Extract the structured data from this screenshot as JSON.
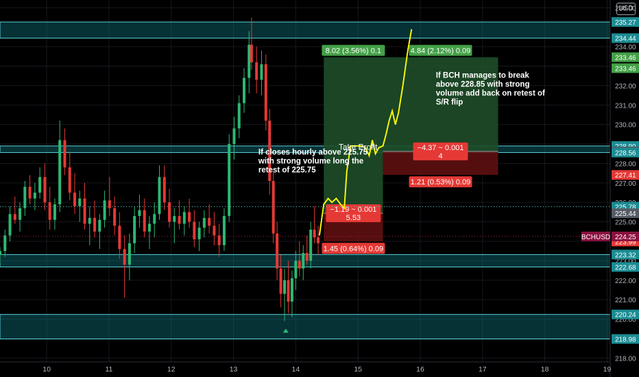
{
  "header": {
    "currency_badge": "USD"
  },
  "colors": {
    "background": "#000000",
    "zone_fill": "#0e6f78",
    "zone_border": "#5cd3dc",
    "up_candle": "#2eb872",
    "down_candle": "#e53935",
    "profit_zone": "#1e4d28",
    "stop_zone": "#5e1010",
    "projection": "#f5f50a",
    "label_green": "#43a047",
    "label_red": "#e53935",
    "symbol_badge": "#8b1140"
  },
  "chart_data": {
    "type": "candlestick",
    "symbol": "BCHUSD",
    "last_price": "224.25",
    "y_axis": {
      "ticks": [
        "236.00",
        "234.00",
        "233.00",
        "232.00",
        "231.00",
        "230.00",
        "229.00",
        "228.00",
        "227.00",
        "226.00",
        "225.00",
        "224.00",
        "223.00",
        "222.00",
        "221.00",
        "220.00",
        "219.00",
        "218.00"
      ],
      "range": [
        217.8,
        236.4
      ],
      "scale": "linear"
    },
    "x_axis": {
      "ticks": [
        "10",
        "11",
        "12",
        "13",
        "14",
        "15",
        "16",
        "17",
        "18",
        "19"
      ],
      "range": [
        9.25,
        19.05
      ]
    },
    "price_labels": [
      {
        "value": 235.27,
        "text": "235.27",
        "color": "#1b8c93"
      },
      {
        "value": 234.44,
        "text": "234.44",
        "color": "#1b8c93"
      },
      {
        "value": 233.46,
        "text": "233.46",
        "color": "#43a047"
      },
      {
        "value": 233.46,
        "text": "233.46",
        "color": "#43a047",
        "offset": 16
      },
      {
        "value": 228.9,
        "text": "228.90",
        "color": "#1b8c93"
      },
      {
        "value": 228.62,
        "text": "228.62",
        "color": "#555c66"
      },
      {
        "value": 228.56,
        "text": "228.56",
        "color": "#1b8c93"
      },
      {
        "value": 227.41,
        "text": "227.41",
        "color": "#e53935"
      },
      {
        "value": 225.78,
        "text": "225.78",
        "color": "#1b8c93"
      },
      {
        "value": 225.44,
        "text": "225.44",
        "color": "#555c66"
      },
      {
        "value": 223.99,
        "text": "223.99",
        "color": "#e53935"
      },
      {
        "value": 223.32,
        "text": "223.32",
        "color": "#1b8c93"
      },
      {
        "value": 222.68,
        "text": "222.68",
        "color": "#1b8c93"
      },
      {
        "value": 220.24,
        "text": "220.24",
        "color": "#1b8c93"
      },
      {
        "value": 218.98,
        "text": "218.98",
        "color": "#1b8c93"
      }
    ],
    "zones": [
      {
        "low": 234.44,
        "high": 235.27
      },
      {
        "low": 228.56,
        "high": 228.9
      },
      {
        "low": 222.68,
        "high": 223.32
      },
      {
        "low": 218.98,
        "high": 220.24
      }
    ],
    "hlines": [
      {
        "value": 225.78,
        "style": "dotted",
        "color": "#5cd3dc"
      },
      {
        "value": 224.25,
        "style": "dotted",
        "color": "#b01f4e"
      }
    ],
    "positions": [
      {
        "x0": 14.45,
        "x1": 15.4,
        "entry": 225.44,
        "target": 233.46,
        "stop": 223.99,
        "target_label": "8.02 (3.56%) 0.1",
        "stop_label": "1.45 (0.64%) 0.09",
        "mid_label": [
          "−1.19 ~ 0.001",
          "5.53"
        ]
      },
      {
        "x0": 15.4,
        "x1": 17.25,
        "entry": 228.62,
        "target": 233.46,
        "stop": 227.41,
        "target_label": "4.84 (2.12%) 0.09",
        "stop_label": "1.21 (0.53%) 0.09",
        "mid_label": [
          "−4.37 ~ 0.001",
          "4"
        ]
      }
    ],
    "annotations": [
      {
        "x": 13.4,
        "y": 228.45,
        "lines": [
          "If closes hourly above 225.75",
          "with strong volume long the",
          "retest of 225.75"
        ]
      },
      {
        "x": 16.25,
        "y": 232.4,
        "lines": [
          "If BCH manages to break",
          "above 228.85 with strong",
          "volume add back on retest of",
          "S/R flip"
        ]
      },
      {
        "x": 15.0,
        "y": 228.7,
        "lines": [
          "Take Profit"
        ]
      }
    ],
    "projection_path": [
      [
        14.38,
        224.3
      ],
      [
        14.45,
        225.9
      ],
      [
        14.52,
        226.2
      ],
      [
        14.58,
        226.0
      ],
      [
        14.65,
        226.2
      ],
      [
        14.72,
        225.9
      ],
      [
        14.78,
        225.7
      ],
      [
        14.82,
        227.6
      ],
      [
        14.88,
        228.9
      ],
      [
        14.95,
        228.9
      ],
      [
        15.05,
        228.9
      ],
      [
        15.12,
        228.8
      ],
      [
        15.18,
        228.4
      ],
      [
        15.23,
        229.2
      ],
      [
        15.28,
        228.5
      ],
      [
        15.33,
        228.8
      ],
      [
        15.4,
        228.9
      ],
      [
        15.45,
        229.5
      ],
      [
        15.5,
        230.2
      ],
      [
        15.55,
        230.7
      ],
      [
        15.6,
        230.0
      ],
      [
        15.65,
        230.6
      ],
      [
        15.72,
        232.0
      ],
      [
        15.8,
        233.8
      ],
      [
        15.86,
        234.9
      ]
    ],
    "candles": [
      [
        9.25,
        223.3,
        223.7,
        222.9,
        223.5
      ],
      [
        9.33,
        223.5,
        224.6,
        223.2,
        224.3
      ],
      [
        9.41,
        224.3,
        225.8,
        224.0,
        225.4
      ],
      [
        9.49,
        225.4,
        226.3,
        224.9,
        225.1
      ],
      [
        9.57,
        225.1,
        226.0,
        224.5,
        225.7
      ],
      [
        9.65,
        225.7,
        227.1,
        225.3,
        226.8
      ],
      [
        9.73,
        226.8,
        227.4,
        225.9,
        226.2
      ],
      [
        9.81,
        226.2,
        227.0,
        225.6,
        226.5
      ],
      [
        9.89,
        226.5,
        227.8,
        226.2,
        227.3
      ],
      [
        9.97,
        227.3,
        228.0,
        225.6,
        226.0
      ],
      [
        10.05,
        226.0,
        226.8,
        224.6,
        225.1
      ],
      [
        10.13,
        225.1,
        226.2,
        224.6,
        225.9
      ],
      [
        10.21,
        225.9,
        230.2,
        225.5,
        229.2
      ],
      [
        10.29,
        229.2,
        229.8,
        227.4,
        227.8
      ],
      [
        10.37,
        227.8,
        228.6,
        226.1,
        226.5
      ],
      [
        10.45,
        226.5,
        227.5,
        225.4,
        225.8
      ],
      [
        10.53,
        225.8,
        226.6,
        225.0,
        226.2
      ],
      [
        10.61,
        226.2,
        227.0,
        224.6,
        224.9
      ],
      [
        10.69,
        224.9,
        225.8,
        223.8,
        225.2
      ],
      [
        10.77,
        225.2,
        226.1,
        224.2,
        224.5
      ],
      [
        10.85,
        224.5,
        225.4,
        223.6,
        225.1
      ],
      [
        10.93,
        225.1,
        226.6,
        224.7,
        226.1
      ],
      [
        11.01,
        226.1,
        227.3,
        225.3,
        225.7
      ],
      [
        11.09,
        225.7,
        226.3,
        224.3,
        224.8
      ],
      [
        11.17,
        224.8,
        225.5,
        223.1,
        223.6
      ],
      [
        11.25,
        223.6,
        224.3,
        221.1,
        222.8
      ],
      [
        11.33,
        222.8,
        224.4,
        222.0,
        223.9
      ],
      [
        11.41,
        223.9,
        225.8,
        223.4,
        225.3
      ],
      [
        11.49,
        225.3,
        226.4,
        224.7,
        225.6
      ],
      [
        11.57,
        225.6,
        226.2,
        224.2,
        224.5
      ],
      [
        11.65,
        224.5,
        225.3,
        223.6,
        224.9
      ],
      [
        11.73,
        224.9,
        226.0,
        224.2,
        225.4
      ],
      [
        11.81,
        225.4,
        227.9,
        225.1,
        227.3
      ],
      [
        11.89,
        227.3,
        227.9,
        225.6,
        226.0
      ],
      [
        11.97,
        226.0,
        226.7,
        224.7,
        225.0
      ],
      [
        12.05,
        225.0,
        225.7,
        223.9,
        225.3
      ],
      [
        12.13,
        225.3,
        226.1,
        224.6,
        224.9
      ],
      [
        12.21,
        224.9,
        225.8,
        224.3,
        225.5
      ],
      [
        12.29,
        225.5,
        226.2,
        224.7,
        225.0
      ],
      [
        12.37,
        225.0,
        225.6,
        223.7,
        224.1
      ],
      [
        12.45,
        224.1,
        225.0,
        223.5,
        224.7
      ],
      [
        12.53,
        224.7,
        225.6,
        224.2,
        225.2
      ],
      [
        12.61,
        225.2,
        225.9,
        224.4,
        224.8
      ],
      [
        12.69,
        224.8,
        225.5,
        223.8,
        224.3
      ],
      [
        12.77,
        224.3,
        224.9,
        223.2,
        223.8
      ],
      [
        12.85,
        223.8,
        225.7,
        223.5,
        225.3
      ],
      [
        12.93,
        225.3,
        229.5,
        225.0,
        229.0
      ],
      [
        13.01,
        229.0,
        230.4,
        228.2,
        229.8
      ],
      [
        13.09,
        229.8,
        231.5,
        229.3,
        231.1
      ],
      [
        13.17,
        231.1,
        232.9,
        230.6,
        232.4
      ],
      [
        13.25,
        232.4,
        234.8,
        231.6,
        234.1
      ],
      [
        13.29,
        234.1,
        235.5,
        232.8,
        233.2
      ],
      [
        13.37,
        233.2,
        234.0,
        231.6,
        232.3
      ],
      [
        13.45,
        232.3,
        233.8,
        231.5,
        233.1
      ],
      [
        13.52,
        233.1,
        233.6,
        229.7,
        230.2
      ],
      [
        13.58,
        230.2,
        230.8,
        226.4,
        227.1
      ],
      [
        13.64,
        227.1,
        227.6,
        223.9,
        224.4
      ],
      [
        13.7,
        224.4,
        225.0,
        222.0,
        222.6
      ],
      [
        13.76,
        222.6,
        223.3,
        220.6,
        221.3
      ],
      [
        13.82,
        221.3,
        222.6,
        219.9,
        222.0
      ],
      [
        13.88,
        222.0,
        223.0,
        220.3,
        220.9
      ],
      [
        13.94,
        220.9,
        222.5,
        220.1,
        222.1
      ],
      [
        14.0,
        222.1,
        223.5,
        221.5,
        223.0
      ],
      [
        14.06,
        223.0,
        224.0,
        222.2,
        222.6
      ],
      [
        14.12,
        222.6,
        223.8,
        222.0,
        223.4
      ],
      [
        14.18,
        223.4,
        224.3,
        222.8,
        223.0
      ],
      [
        14.24,
        223.0,
        225.0,
        222.6,
        224.6
      ],
      [
        14.3,
        224.6,
        225.8,
        223.9,
        224.2
      ],
      [
        14.36,
        224.2,
        224.8,
        223.3,
        223.9
      ]
    ]
  }
}
